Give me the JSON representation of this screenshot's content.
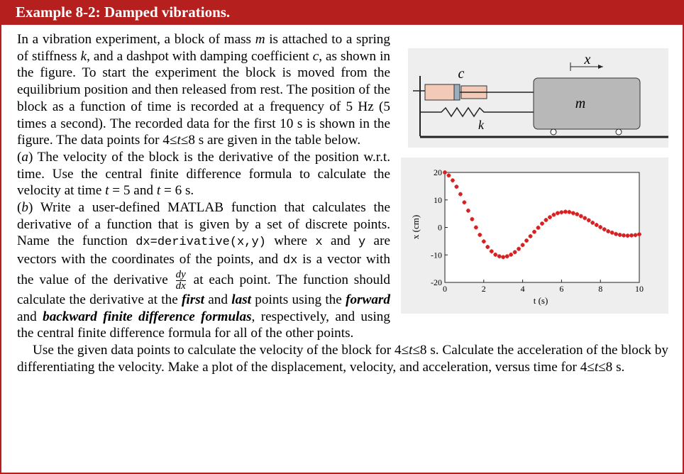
{
  "header": {
    "title": "Example 8-2: Damped vibrations."
  },
  "paragraphs": [
    [
      "In a vibration experiment, a block of mass ",
      "m",
      " is attached to a spring of stiffness ",
      "k",
      ", and a dashpot with damping coefficient ",
      "c",
      ", as shown in the figure. To start the experiment the block is moved from the equilibrium position and then released from rest. The position of the block as a function of time is recorded at a frequency of 5 Hz (5 times a second). The recorded data for the first 10 s is shown in the figure. The data points for ",
      "4≤",
      "t",
      "≤8",
      " s are given in the table below."
    ],
    [
      "(",
      "a",
      ") The velocity of the block is the derivative of the position w.r.t. time. Use the central finite difference formula to calculate the velocity at time ",
      "t",
      " = 5 and ",
      "t",
      " = 6 s."
    ],
    [
      "(",
      "b",
      ") Write a user-defined MATLAB function that calculates the derivative of a function that is given by a set of discrete points. Name the function ",
      "dx=derivative(x,y)",
      " where ",
      "x",
      " and ",
      "y",
      " are vectors with the coordinates of the points, and ",
      "dx",
      " is a vector with the value of the derivative ",
      "dy",
      "dx",
      " at each point. The function should calculate the derivative at the ",
      "first",
      " and ",
      "last",
      " points using the ",
      "forward",
      " and ",
      "backward finite difference formulas",
      ", respectively, and using the central finite difference formula for all of the other points."
    ],
    [
      "Use the given data points to calculate the velocity of the block for ",
      "4≤",
      "t",
      "≤8",
      " s. Calculate the acceleration of the block by differentiating the velocity. Make a plot of the displacement, velocity, and acceleration, versus time for ",
      "4≤",
      "t",
      "≤8",
      " s."
    ]
  ],
  "diagram": {
    "damping_label": "c",
    "spring_label": "k",
    "mass_label": "m",
    "position_label": "x"
  },
  "chart_data": {
    "type": "scatter",
    "xlabel": "t (s)",
    "ylabel": "x (cm)",
    "color": "#d42020",
    "x": [
      0,
      0.2,
      0.4,
      0.6,
      0.8,
      1,
      1.2,
      1.4,
      1.6,
      1.8,
      2,
      2.2,
      2.4,
      2.6,
      2.8,
      3,
      3.2,
      3.4,
      3.6,
      3.8,
      4,
      4.2,
      4.4,
      4.6,
      4.8,
      5,
      5.2,
      5.4,
      5.6,
      5.8,
      6,
      6.2,
      6.4,
      6.6,
      6.8,
      7,
      7.2,
      7.4,
      7.6,
      7.8,
      8,
      8.2,
      8.4,
      8.6,
      8.8,
      9,
      9.2,
      9.4,
      9.6,
      9.8,
      10
    ],
    "values": [
      20,
      18.9,
      17.1,
      14.8,
      12.1,
      9.1,
      6.1,
      3.0,
      0.0,
      -2.7,
      -5.1,
      -7.1,
      -8.7,
      -9.9,
      -10.5,
      -10.8,
      -10.5,
      -9.9,
      -9.0,
      -7.8,
      -6.4,
      -4.8,
      -3.2,
      -1.6,
      -0.1,
      1.4,
      2.7,
      3.7,
      4.6,
      5.2,
      5.5,
      5.7,
      5.6,
      5.2,
      4.8,
      4.1,
      3.4,
      2.6,
      1.7,
      0.9,
      0.1,
      -0.7,
      -1.4,
      -1.9,
      -2.4,
      -2.7,
      -2.9,
      -3.0,
      -2.9,
      -2.8,
      -2.5
    ],
    "xlim": [
      0,
      10
    ],
    "ylim": [
      -20,
      20
    ],
    "xticks": [
      0,
      2,
      4,
      6,
      8,
      10
    ],
    "yticks": [
      -20,
      -10,
      0,
      10,
      20
    ]
  }
}
